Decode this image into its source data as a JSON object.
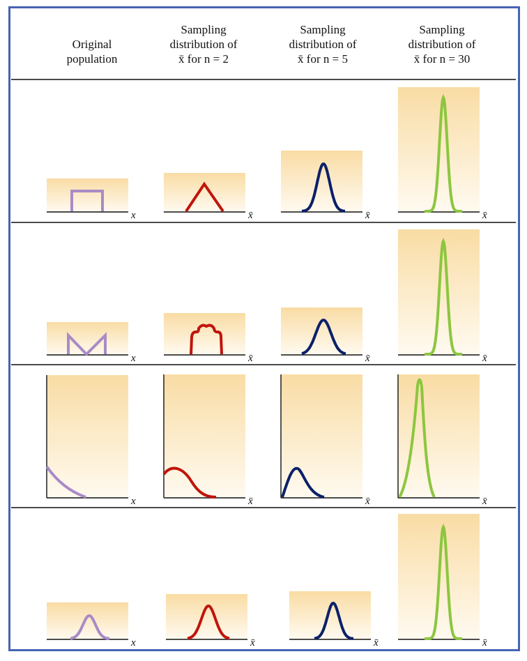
{
  "headers": [
    {
      "lines": [
        "Original",
        "population"
      ]
    },
    {
      "lines": [
        "Sampling",
        "distribution of",
        "x̄ for n = 2"
      ]
    },
    {
      "lines": [
        "Sampling",
        "distribution of",
        "x̄ for n = 5"
      ]
    },
    {
      "lines": [
        "Sampling",
        "distribution of",
        "x̄ for n = 30"
      ]
    }
  ],
  "axis_labels": [
    "x",
    "x̄",
    "x̄",
    "x̄"
  ],
  "colors": {
    "frame": "#4764b3",
    "population": "#a98bc7",
    "n2": "#c0150b",
    "n5": "#0b2069",
    "n30": "#8cc63f",
    "panel_top": "#f9dca4",
    "panel_bottom": "#fffaf0"
  },
  "rows": [
    {
      "shape": "uniform"
    },
    {
      "shape": "u-shaped"
    },
    {
      "shape": "exponential"
    },
    {
      "shape": "normal"
    }
  ]
}
